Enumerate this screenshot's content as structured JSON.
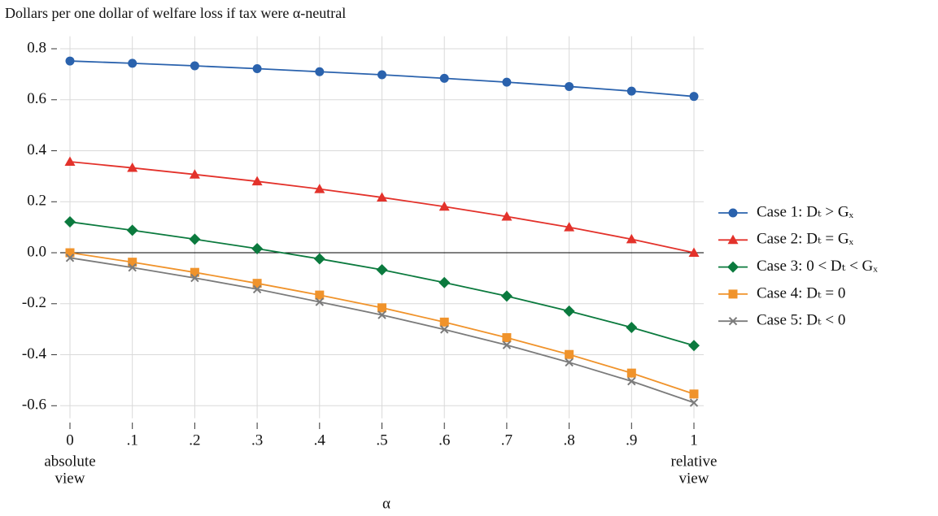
{
  "chart_data": {
    "type": "line",
    "title": "Dollars per one dollar of welfare loss if tax were α-neutral",
    "x_label": "α",
    "x": [
      0,
      0.1,
      0.2,
      0.3,
      0.4,
      0.5,
      0.6,
      0.7,
      0.8,
      0.9,
      1
    ],
    "xlim": [
      0,
      1
    ],
    "xticks": [
      0,
      {
        "value": 0.1,
        "label": ".1"
      },
      {
        "value": 0.2,
        "label": ".2"
      },
      {
        "value": 0.3,
        "label": ".3"
      },
      {
        "value": 0.4,
        "label": ".4"
      },
      {
        "value": 0.5,
        "label": ".5"
      },
      {
        "value": 0.6,
        "label": ".6"
      },
      {
        "value": 0.7,
        "label": ".7"
      },
      {
        "value": 0.8,
        "label": ".8"
      },
      {
        "value": 0.9,
        "label": ".9"
      },
      1
    ],
    "ylim": [
      -0.63,
      0.83
    ],
    "yticks": [
      {
        "value": -0.6,
        "label": "-0.6"
      },
      {
        "value": -0.4,
        "label": "-0.4"
      },
      {
        "value": -0.2,
        "label": "-0.2"
      },
      {
        "value": 0,
        "label": "0.0"
      },
      0.2,
      0.4,
      0.6,
      0.8
    ],
    "grid": true,
    "hline": 0,
    "annotations": [
      {
        "x": 0,
        "lines": [
          "absolute",
          "view"
        ]
      },
      {
        "x": 1,
        "lines": [
          "relative",
          "view"
        ]
      }
    ],
    "legend": "right",
    "series": [
      {
        "name": "Case 1: Dₜ > Gₓ",
        "color": "#2a62ad",
        "marker": "circle",
        "values": [
          0.752,
          0.743,
          0.733,
          0.722,
          0.71,
          0.698,
          0.684,
          0.669,
          0.652,
          0.634,
          0.613
        ]
      },
      {
        "name": "Case 2: Dₜ = Gₓ",
        "color": "#e3322b",
        "marker": "triangle",
        "values": [
          0.357,
          0.333,
          0.307,
          0.28,
          0.25,
          0.217,
          0.181,
          0.142,
          0.1,
          0.053,
          0.0
        ]
      },
      {
        "name": "Case 3: 0 < Dₜ < Gₓ",
        "color": "#0b7a3e",
        "marker": "diamond",
        "values": [
          0.121,
          0.088,
          0.053,
          0.016,
          -0.024,
          -0.067,
          -0.117,
          -0.17,
          -0.229,
          -0.293,
          -0.364
        ]
      },
      {
        "name": "Case 4: Dₜ = 0",
        "color": "#f0932b",
        "marker": "square",
        "values": [
          0,
          -0.037,
          -0.077,
          -0.12,
          -0.166,
          -0.216,
          -0.272,
          -0.333,
          -0.399,
          -0.472,
          -0.554
        ]
      },
      {
        "name": "Case 5: Dₜ < 0",
        "color": "#7b7b7b",
        "marker": "x",
        "values": [
          -0.02,
          -0.058,
          -0.099,
          -0.143,
          -0.193,
          -0.244,
          -0.301,
          -0.362,
          -0.43,
          -0.504,
          -0.588
        ]
      }
    ]
  }
}
